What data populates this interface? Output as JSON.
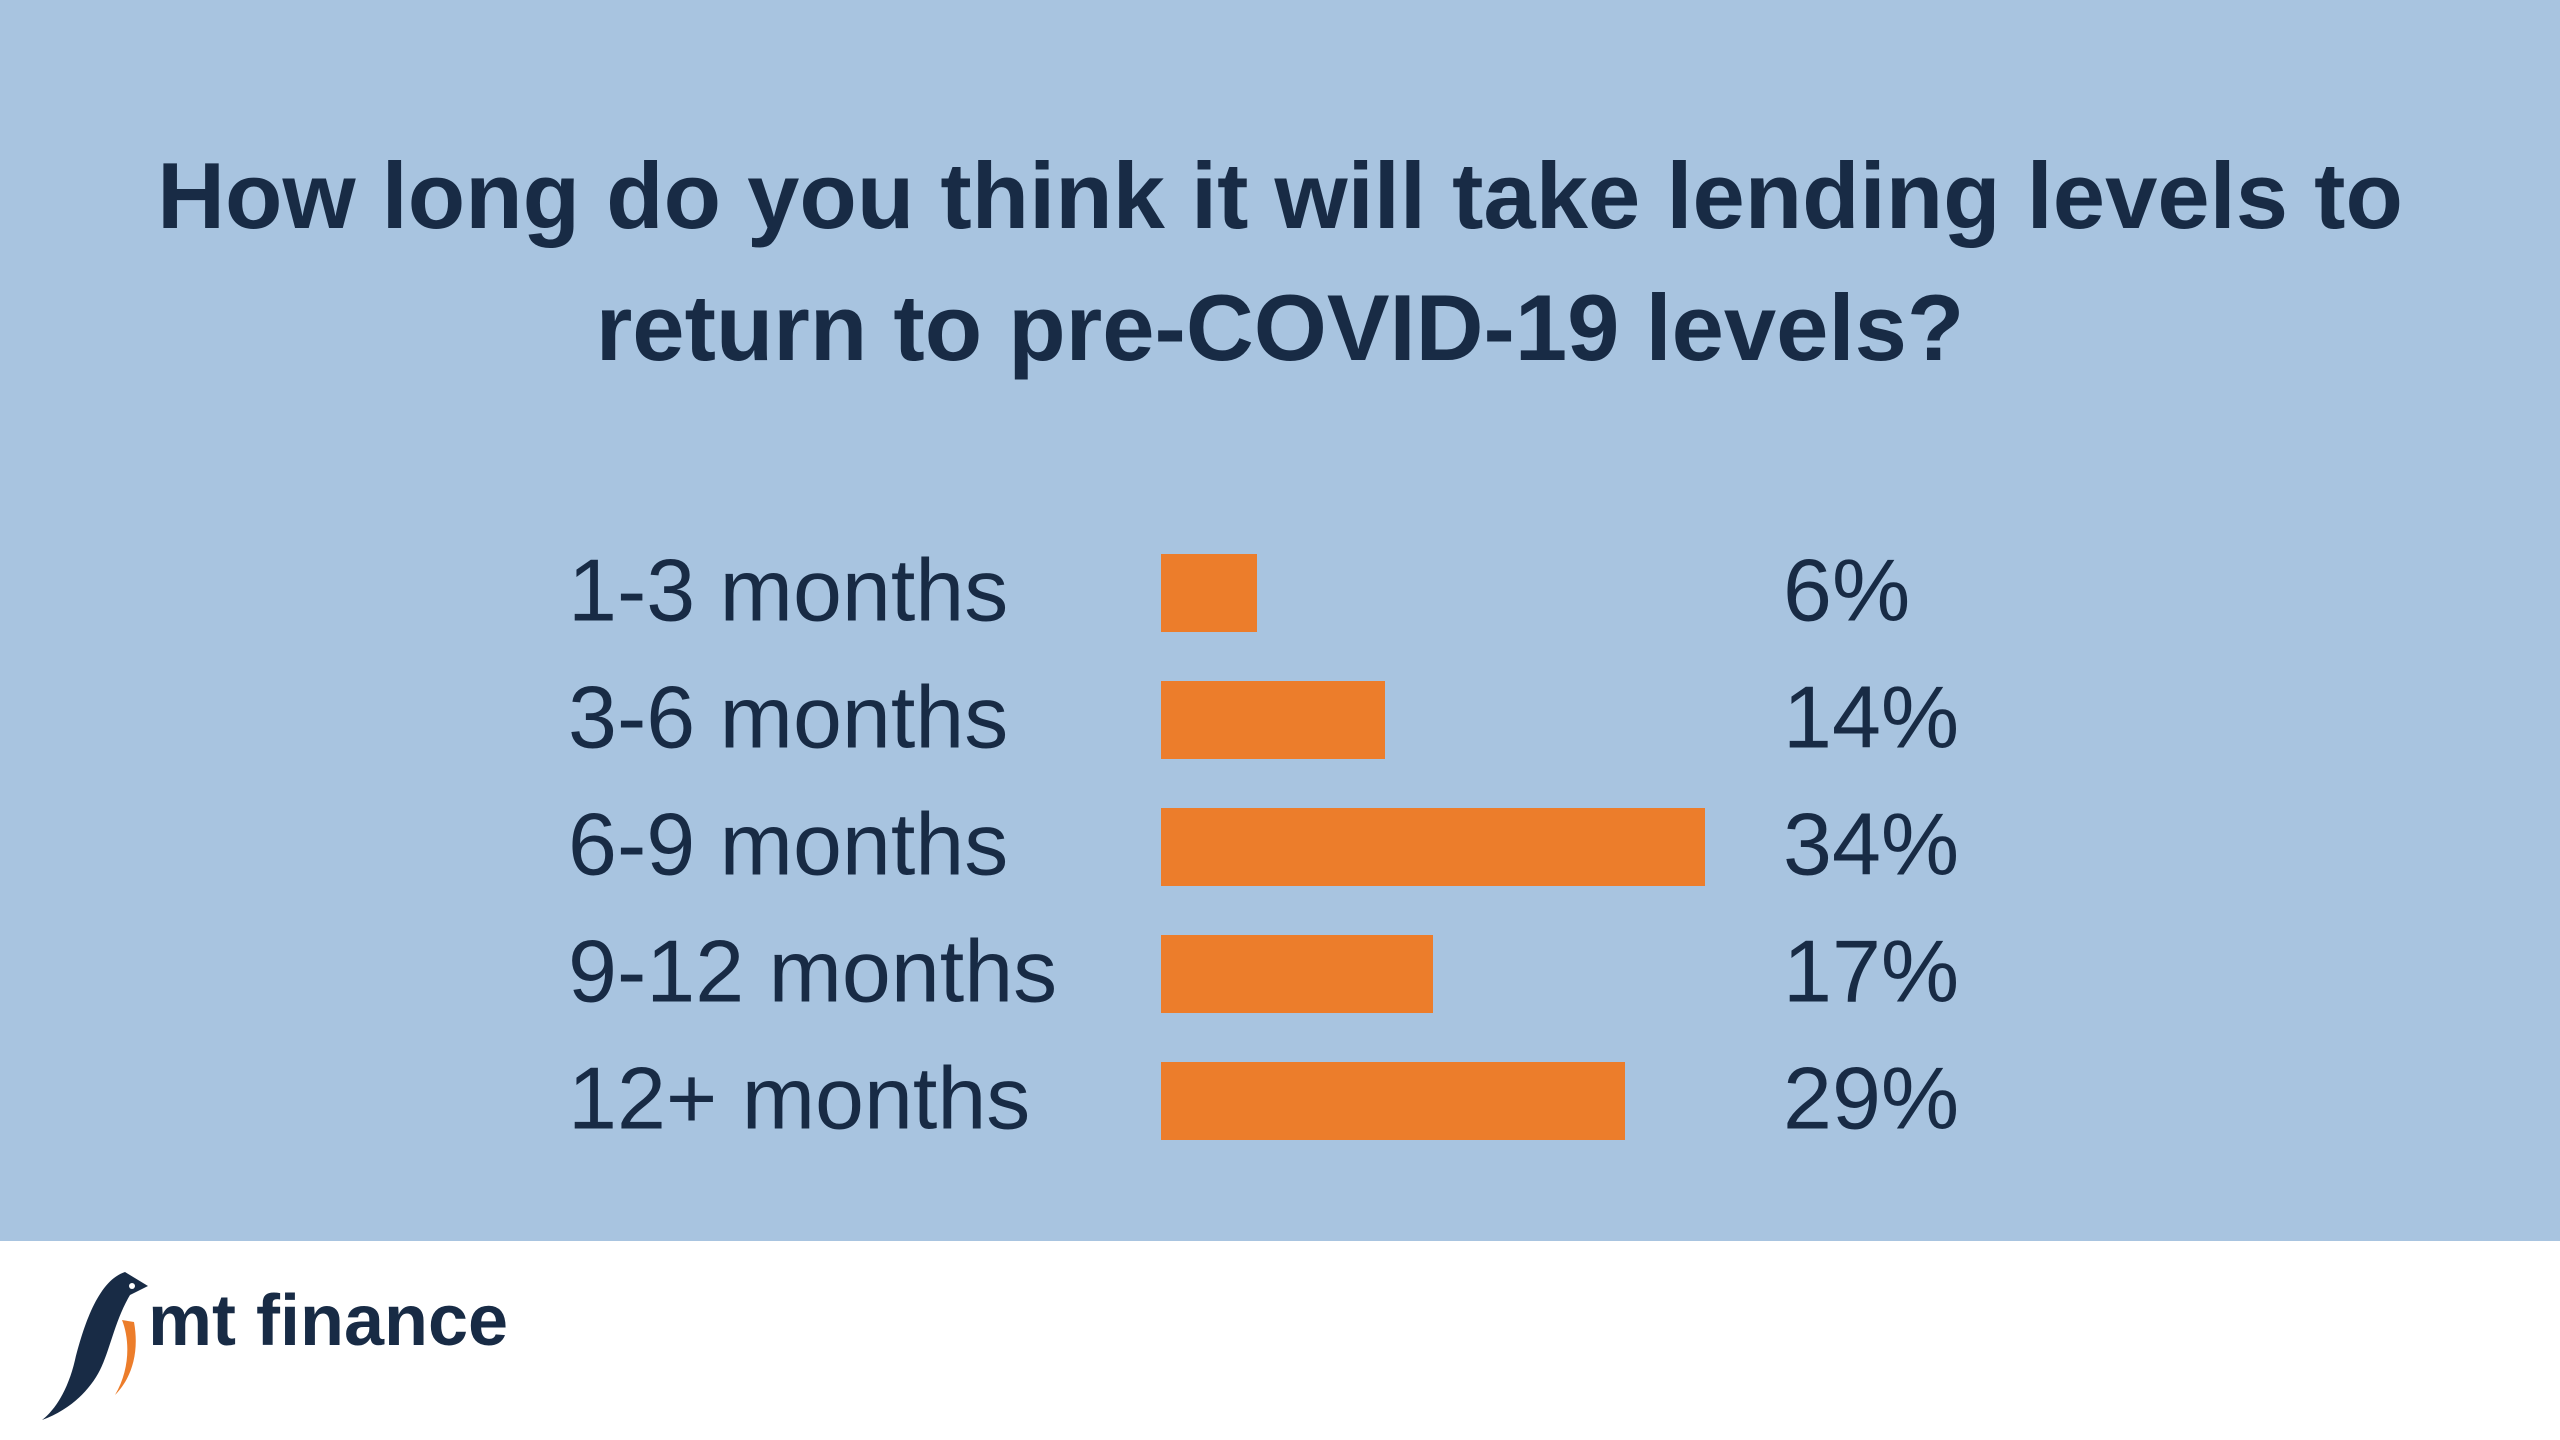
{
  "chart_data": {
    "type": "bar",
    "orientation": "horizontal",
    "title": "How long do you think it will take lending levels to return to pre-COVID-19 levels?",
    "categories": [
      "1-3 months",
      "3-6 months",
      "6-9 months",
      "9-12 months",
      "12+ months"
    ],
    "values": [
      6,
      14,
      34,
      17,
      29
    ],
    "value_labels": [
      "6%",
      "14%",
      "34%",
      "17%",
      "29%"
    ],
    "color": "#ec7d2b"
  },
  "logo_text": "mt finance"
}
